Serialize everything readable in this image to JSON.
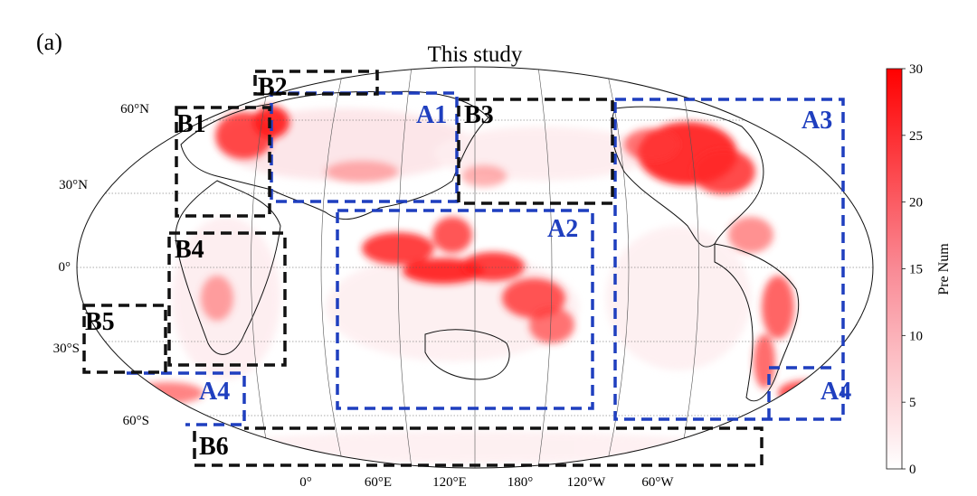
{
  "panel_label": "(a)",
  "title": "This study",
  "lat_labels": [
    "60°N",
    "30°N",
    "0°",
    "30°S",
    "60°S"
  ],
  "lon_labels": [
    "0°",
    "60°E",
    "120°E",
    "180°",
    "120°W",
    "60°W"
  ],
  "colorbar": {
    "label": "Pre Num",
    "ticks": [
      "0",
      "5",
      "10",
      "15",
      "20",
      "25",
      "30"
    ],
    "min": 0,
    "max": 30,
    "colors": [
      "#ffffff",
      "#ff0000"
    ]
  },
  "regions": [
    {
      "id": "A1",
      "label": "A1",
      "color": "#1f3fbf"
    },
    {
      "id": "A2",
      "label": "A2",
      "color": "#1f3fbf"
    },
    {
      "id": "A3",
      "label": "A3",
      "color": "#1f3fbf"
    },
    {
      "id": "A4",
      "label": "A4",
      "color": "#1f3fbf"
    },
    {
      "id": "B1",
      "label": "B1",
      "color": "#111111"
    },
    {
      "id": "B2",
      "label": "B2",
      "color": "#111111"
    },
    {
      "id": "B3",
      "label": "B3",
      "color": "#111111"
    },
    {
      "id": "B4",
      "label": "B4",
      "color": "#111111"
    },
    {
      "id": "B5",
      "label": "B5",
      "color": "#111111"
    },
    {
      "id": "B6",
      "label": "B6",
      "color": "#111111"
    }
  ],
  "hotspot_color": "#ff1a1a"
}
